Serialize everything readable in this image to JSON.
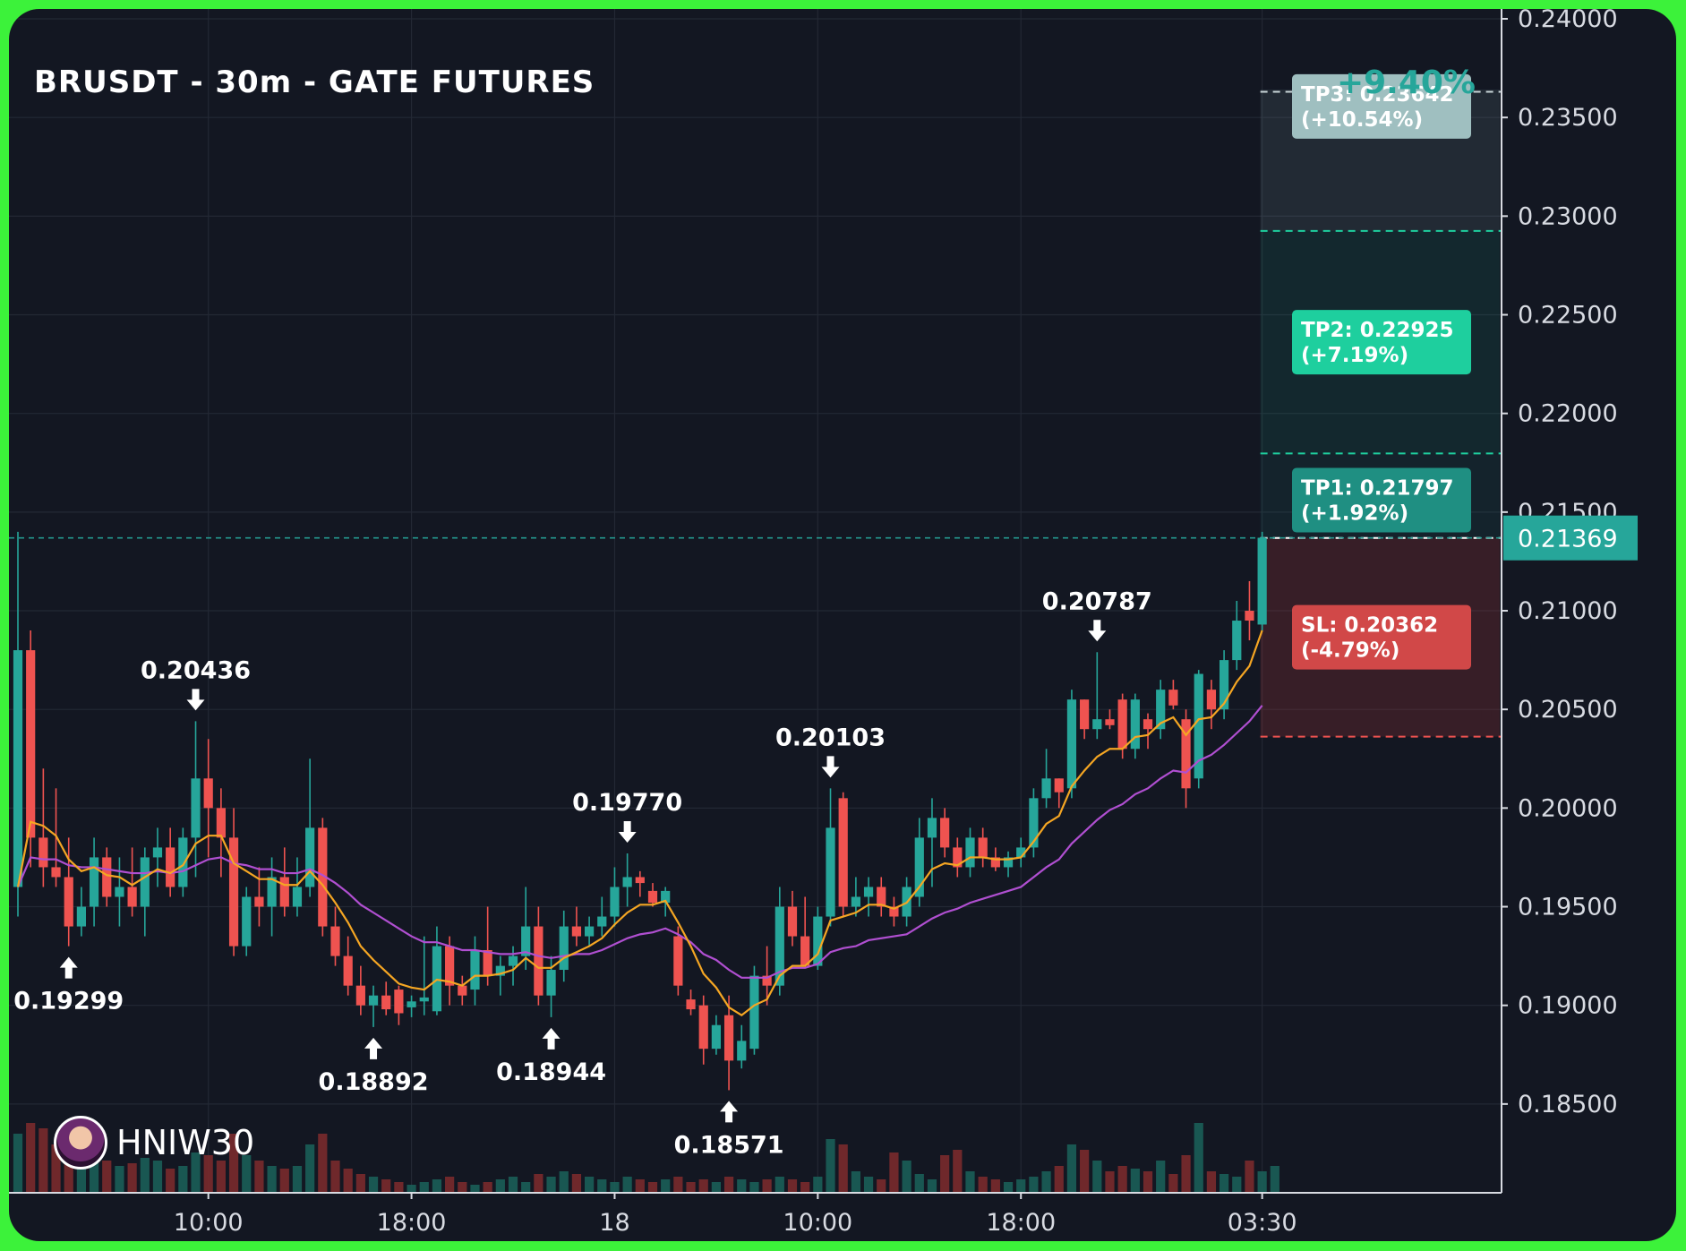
{
  "header": {
    "title": "BRUSDT - 30m - GATE FUTURES",
    "total_gain": "+9.40%"
  },
  "watermark": {
    "label": "HNIW30",
    "icon": "avatar-icon"
  },
  "colors": {
    "background": "#131722",
    "frame": "#3cf23a",
    "bull": "#26a69a",
    "bear": "#ef5350",
    "ema_fast": "#f5a623",
    "ema_slow": "#b04fd1",
    "tp1": "#1f8f82",
    "tp2": "#1ecf9e",
    "tp3": "#9fbfc0",
    "sl": "#d14848",
    "current_price": "#26a69a"
  },
  "chart_data": {
    "type": "candlestick",
    "title": "BRUSDT - 30m - GATE FUTURES",
    "xlabel": "",
    "ylabel": "",
    "ylim": [
      0.1805,
      0.2405
    ],
    "grid": true,
    "y_ticks": [
      "0.18500",
      "0.19000",
      "0.19500",
      "0.20000",
      "0.20500",
      "0.21000",
      "0.21500",
      "0.22000",
      "0.22500",
      "0.23000",
      "0.23500",
      "0.24000"
    ],
    "x_ticks": [
      {
        "label": "10:00",
        "bar": 15
      },
      {
        "label": "18:00",
        "bar": 31
      },
      {
        "label": "18",
        "bar": 47
      },
      {
        "label": "10:00",
        "bar": 63
      },
      {
        "label": "18:00",
        "bar": 79
      },
      {
        "label": "03:30",
        "bar": 98
      }
    ],
    "candles": [
      {
        "o": 0.196,
        "h": 0.214,
        "l": 0.1945,
        "c": 0.208
      },
      {
        "o": 0.208,
        "h": 0.209,
        "l": 0.197,
        "c": 0.1985
      },
      {
        "o": 0.1985,
        "h": 0.202,
        "l": 0.196,
        "c": 0.197
      },
      {
        "o": 0.197,
        "h": 0.201,
        "l": 0.196,
        "c": 0.1965
      },
      {
        "o": 0.1965,
        "h": 0.1985,
        "l": 0.193,
        "c": 0.194
      },
      {
        "o": 0.194,
        "h": 0.196,
        "l": 0.1935,
        "c": 0.195
      },
      {
        "o": 0.195,
        "h": 0.1985,
        "l": 0.194,
        "c": 0.1975
      },
      {
        "o": 0.1975,
        "h": 0.198,
        "l": 0.195,
        "c": 0.1955
      },
      {
        "o": 0.1955,
        "h": 0.1975,
        "l": 0.194,
        "c": 0.196
      },
      {
        "o": 0.196,
        "h": 0.198,
        "l": 0.1945,
        "c": 0.195
      },
      {
        "o": 0.195,
        "h": 0.198,
        "l": 0.1935,
        "c": 0.1975
      },
      {
        "o": 0.1975,
        "h": 0.199,
        "l": 0.196,
        "c": 0.198
      },
      {
        "o": 0.198,
        "h": 0.199,
        "l": 0.1955,
        "c": 0.196
      },
      {
        "o": 0.196,
        "h": 0.199,
        "l": 0.1955,
        "c": 0.1985
      },
      {
        "o": 0.1985,
        "h": 0.2044,
        "l": 0.1965,
        "c": 0.2015
      },
      {
        "o": 0.2015,
        "h": 0.2035,
        "l": 0.1975,
        "c": 0.2
      },
      {
        "o": 0.2,
        "h": 0.201,
        "l": 0.1965,
        "c": 0.1985
      },
      {
        "o": 0.1985,
        "h": 0.2,
        "l": 0.1925,
        "c": 0.193
      },
      {
        "o": 0.193,
        "h": 0.196,
        "l": 0.1925,
        "c": 0.1955
      },
      {
        "o": 0.1955,
        "h": 0.197,
        "l": 0.194,
        "c": 0.195
      },
      {
        "o": 0.195,
        "h": 0.1975,
        "l": 0.1935,
        "c": 0.1965
      },
      {
        "o": 0.1965,
        "h": 0.198,
        "l": 0.1945,
        "c": 0.195
      },
      {
        "o": 0.195,
        "h": 0.1975,
        "l": 0.1945,
        "c": 0.196
      },
      {
        "o": 0.196,
        "h": 0.2025,
        "l": 0.1955,
        "c": 0.199
      },
      {
        "o": 0.199,
        "h": 0.1995,
        "l": 0.1935,
        "c": 0.194
      },
      {
        "o": 0.194,
        "h": 0.195,
        "l": 0.192,
        "c": 0.1925
      },
      {
        "o": 0.1925,
        "h": 0.1935,
        "l": 0.1905,
        "c": 0.191
      },
      {
        "o": 0.191,
        "h": 0.192,
        "l": 0.1895,
        "c": 0.19
      },
      {
        "o": 0.19,
        "h": 0.191,
        "l": 0.1889,
        "c": 0.1905
      },
      {
        "o": 0.1905,
        "h": 0.1912,
        "l": 0.1895,
        "c": 0.1898
      },
      {
        "o": 0.1908,
        "h": 0.191,
        "l": 0.189,
        "c": 0.1896
      },
      {
        "o": 0.1899,
        "h": 0.1905,
        "l": 0.1894,
        "c": 0.1902
      },
      {
        "o": 0.1902,
        "h": 0.1935,
        "l": 0.1895,
        "c": 0.1904
      },
      {
        "o": 0.1897,
        "h": 0.194,
        "l": 0.1895,
        "c": 0.193
      },
      {
        "o": 0.193,
        "h": 0.1935,
        "l": 0.19,
        "c": 0.191
      },
      {
        "o": 0.191,
        "h": 0.1915,
        "l": 0.19,
        "c": 0.1905
      },
      {
        "o": 0.1908,
        "h": 0.1935,
        "l": 0.19,
        "c": 0.1928
      },
      {
        "o": 0.1928,
        "h": 0.195,
        "l": 0.191,
        "c": 0.1915
      },
      {
        "o": 0.1915,
        "h": 0.1925,
        "l": 0.1905,
        "c": 0.192
      },
      {
        "o": 0.192,
        "h": 0.193,
        "l": 0.191,
        "c": 0.1925
      },
      {
        "o": 0.1925,
        "h": 0.196,
        "l": 0.1918,
        "c": 0.194
      },
      {
        "o": 0.194,
        "h": 0.195,
        "l": 0.19,
        "c": 0.1905
      },
      {
        "o": 0.1905,
        "h": 0.1925,
        "l": 0.1894,
        "c": 0.1918
      },
      {
        "o": 0.1918,
        "h": 0.1948,
        "l": 0.1912,
        "c": 0.194
      },
      {
        "o": 0.194,
        "h": 0.195,
        "l": 0.193,
        "c": 0.1935
      },
      {
        "o": 0.1935,
        "h": 0.1945,
        "l": 0.193,
        "c": 0.194
      },
      {
        "o": 0.194,
        "h": 0.1955,
        "l": 0.1935,
        "c": 0.1945
      },
      {
        "o": 0.1945,
        "h": 0.197,
        "l": 0.194,
        "c": 0.196
      },
      {
        "o": 0.196,
        "h": 0.1977,
        "l": 0.195,
        "c": 0.1965
      },
      {
        "o": 0.1965,
        "h": 0.1968,
        "l": 0.1955,
        "c": 0.1962
      },
      {
        "o": 0.1958,
        "h": 0.1962,
        "l": 0.195,
        "c": 0.1952
      },
      {
        "o": 0.1952,
        "h": 0.196,
        "l": 0.1945,
        "c": 0.1958
      },
      {
        "o": 0.1935,
        "h": 0.194,
        "l": 0.1905,
        "c": 0.191
      },
      {
        "o": 0.1903,
        "h": 0.1908,
        "l": 0.1895,
        "c": 0.1898
      },
      {
        "o": 0.19,
        "h": 0.1905,
        "l": 0.187,
        "c": 0.1878
      },
      {
        "o": 0.1878,
        "h": 0.1895,
        "l": 0.1875,
        "c": 0.189
      },
      {
        "o": 0.1895,
        "h": 0.1905,
        "l": 0.1857,
        "c": 0.1872
      },
      {
        "o": 0.1872,
        "h": 0.189,
        "l": 0.1868,
        "c": 0.1882
      },
      {
        "o": 0.1878,
        "h": 0.192,
        "l": 0.1875,
        "c": 0.1915
      },
      {
        "o": 0.1915,
        "h": 0.193,
        "l": 0.19,
        "c": 0.191
      },
      {
        "o": 0.191,
        "h": 0.196,
        "l": 0.1905,
        "c": 0.195
      },
      {
        "o": 0.195,
        "h": 0.1958,
        "l": 0.193,
        "c": 0.1935
      },
      {
        "o": 0.1935,
        "h": 0.1955,
        "l": 0.192,
        "c": 0.192
      },
      {
        "o": 0.192,
        "h": 0.195,
        "l": 0.1918,
        "c": 0.1945
      },
      {
        "o": 0.1945,
        "h": 0.201,
        "l": 0.194,
        "c": 0.199
      },
      {
        "o": 0.2005,
        "h": 0.2008,
        "l": 0.1945,
        "c": 0.195
      },
      {
        "o": 0.195,
        "h": 0.1965,
        "l": 0.1945,
        "c": 0.1955
      },
      {
        "o": 0.1955,
        "h": 0.1965,
        "l": 0.1945,
        "c": 0.196
      },
      {
        "o": 0.196,
        "h": 0.1965,
        "l": 0.1945,
        "c": 0.195
      },
      {
        "o": 0.195,
        "h": 0.1955,
        "l": 0.194,
        "c": 0.1945
      },
      {
        "o": 0.1945,
        "h": 0.1965,
        "l": 0.194,
        "c": 0.196
      },
      {
        "o": 0.1955,
        "h": 0.1995,
        "l": 0.195,
        "c": 0.1985
      },
      {
        "o": 0.1985,
        "h": 0.2005,
        "l": 0.196,
        "c": 0.1995
      },
      {
        "o": 0.1995,
        "h": 0.2,
        "l": 0.1975,
        "c": 0.198
      },
      {
        "o": 0.198,
        "h": 0.1985,
        "l": 0.1965,
        "c": 0.197
      },
      {
        "o": 0.197,
        "h": 0.199,
        "l": 0.1965,
        "c": 0.1985
      },
      {
        "o": 0.1985,
        "h": 0.199,
        "l": 0.197,
        "c": 0.1975
      },
      {
        "o": 0.1975,
        "h": 0.198,
        "l": 0.1968,
        "c": 0.197
      },
      {
        "o": 0.197,
        "h": 0.1978,
        "l": 0.1965,
        "c": 0.1975
      },
      {
        "o": 0.1975,
        "h": 0.1985,
        "l": 0.197,
        "c": 0.198
      },
      {
        "o": 0.198,
        "h": 0.201,
        "l": 0.1975,
        "c": 0.2005
      },
      {
        "o": 0.2005,
        "h": 0.203,
        "l": 0.2,
        "c": 0.2015
      },
      {
        "o": 0.2015,
        "h": 0.2015,
        "l": 0.2,
        "c": 0.2008
      },
      {
        "o": 0.201,
        "h": 0.206,
        "l": 0.2005,
        "c": 0.2055
      },
      {
        "o": 0.2055,
        "h": 0.2055,
        "l": 0.2035,
        "c": 0.204
      },
      {
        "o": 0.204,
        "h": 0.2079,
        "l": 0.2035,
        "c": 0.2045
      },
      {
        "o": 0.2045,
        "h": 0.205,
        "l": 0.204,
        "c": 0.2042
      },
      {
        "o": 0.2055,
        "h": 0.2058,
        "l": 0.2025,
        "c": 0.203
      },
      {
        "o": 0.203,
        "h": 0.2058,
        "l": 0.2025,
        "c": 0.2055
      },
      {
        "o": 0.2045,
        "h": 0.2048,
        "l": 0.203,
        "c": 0.204
      },
      {
        "o": 0.204,
        "h": 0.2065,
        "l": 0.2035,
        "c": 0.206
      },
      {
        "o": 0.206,
        "h": 0.2065,
        "l": 0.205,
        "c": 0.2052
      },
      {
        "o": 0.2045,
        "h": 0.205,
        "l": 0.2,
        "c": 0.201
      },
      {
        "o": 0.2015,
        "h": 0.207,
        "l": 0.201,
        "c": 0.2068
      },
      {
        "o": 0.206,
        "h": 0.2065,
        "l": 0.204,
        "c": 0.205
      },
      {
        "o": 0.205,
        "h": 0.208,
        "l": 0.2045,
        "c": 0.2075
      },
      {
        "o": 0.2075,
        "h": 0.2105,
        "l": 0.207,
        "c": 0.2095
      },
      {
        "o": 0.21,
        "h": 0.2115,
        "l": 0.2085,
        "c": 0.2095
      },
      {
        "o": 0.2093,
        "h": 0.214,
        "l": 0.209,
        "c": 0.2137
      }
    ],
    "volumes": [
      22,
      26,
      24,
      18,
      12,
      10,
      14,
      12,
      10,
      11,
      13,
      12,
      9,
      10,
      15,
      14,
      12,
      22,
      14,
      12,
      10,
      9,
      10,
      18,
      22,
      12,
      9,
      7,
      6,
      5,
      4,
      3,
      4,
      5,
      6,
      4,
      3,
      4,
      5,
      6,
      4,
      7,
      6,
      8,
      7,
      6,
      5,
      4,
      6,
      5,
      4,
      5,
      6,
      4,
      5,
      4,
      6,
      5,
      4,
      5,
      6,
      5,
      4,
      6,
      20,
      18,
      8,
      6,
      5,
      15,
      12,
      7,
      5,
      14,
      16,
      8,
      6,
      5,
      4,
      5,
      6,
      8,
      10,
      18,
      16,
      12,
      8,
      10,
      9,
      8,
      12,
      7,
      14,
      26,
      8,
      7,
      6,
      12,
      8,
      10
    ],
    "ema_fast": [
      0.196,
      0.1993,
      0.1991,
      0.1986,
      0.1974,
      0.1968,
      0.197,
      0.1966,
      0.1965,
      0.1961,
      0.1965,
      0.1969,
      0.1967,
      0.1971,
      0.1982,
      0.1986,
      0.1986,
      0.1972,
      0.1968,
      0.1964,
      0.1964,
      0.1961,
      0.1961,
      0.1968,
      0.1961,
      0.1952,
      0.1942,
      0.193,
      0.1923,
      0.1917,
      0.1911,
      0.1909,
      0.1908,
      0.1913,
      0.1912,
      0.191,
      0.1915,
      0.1915,
      0.1916,
      0.1918,
      0.1924,
      0.1919,
      0.1919,
      0.1924,
      0.1927,
      0.193,
      0.1934,
      0.1941,
      0.1947,
      0.1951,
      0.1951,
      0.1953,
      0.1942,
      0.193,
      0.1916,
      0.1909,
      0.1899,
      0.1895,
      0.19,
      0.1903,
      0.1915,
      0.192,
      0.192,
      0.1926,
      0.1943,
      0.1945,
      0.1947,
      0.1951,
      0.1951,
      0.1949,
      0.1952,
      0.196,
      0.1969,
      0.1972,
      0.1971,
      0.1975,
      0.1975,
      0.1974,
      0.1974,
      0.1975,
      0.1983,
      0.1992,
      0.1996,
      0.2011,
      0.2019,
      0.2026,
      0.203,
      0.203,
      0.2036,
      0.2037,
      0.2043,
      0.2046,
      0.2037,
      0.2045,
      0.2046,
      0.2053,
      0.2064,
      0.2072,
      0.209
    ],
    "ema_slow": [
      0.196,
      0.1975,
      0.1974,
      0.1974,
      0.1971,
      0.197,
      0.197,
      0.1969,
      0.1968,
      0.1967,
      0.1967,
      0.1968,
      0.1967,
      0.1968,
      0.1971,
      0.1974,
      0.1975,
      0.1972,
      0.1971,
      0.1969,
      0.1969,
      0.1967,
      0.1967,
      0.1969,
      0.1966,
      0.1962,
      0.1957,
      0.1951,
      0.1947,
      0.1943,
      0.1939,
      0.1935,
      0.1932,
      0.1932,
      0.193,
      0.1928,
      0.1928,
      0.1927,
      0.1926,
      0.1926,
      0.1927,
      0.1925,
      0.1924,
      0.1925,
      0.1926,
      0.1926,
      0.1928,
      0.1931,
      0.1934,
      0.1936,
      0.1937,
      0.1939,
      0.1936,
      0.1932,
      0.1926,
      0.1923,
      0.1918,
      0.1914,
      0.1914,
      0.1914,
      0.1917,
      0.1919,
      0.1919,
      0.1921,
      0.1927,
      0.1929,
      0.193,
      0.1933,
      0.1934,
      0.1935,
      0.1936,
      0.194,
      0.1944,
      0.1947,
      0.1949,
      0.1952,
      0.1954,
      0.1956,
      0.1958,
      0.196,
      0.1965,
      0.197,
      0.1974,
      0.1982,
      0.1988,
      0.1994,
      0.1999,
      0.2002,
      0.2007,
      0.201,
      0.2015,
      0.2019,
      0.2018,
      0.2024,
      0.2027,
      0.2032,
      0.2038,
      0.2044,
      0.2052
    ],
    "annotations": [
      {
        "label": "0.19299",
        "bar": 4,
        "price": 0.193,
        "direction": "up"
      },
      {
        "label": "0.20436",
        "bar": 14,
        "price": 0.2044,
        "direction": "down"
      },
      {
        "label": "0.18892",
        "bar": 28,
        "price": 0.1889,
        "direction": "up"
      },
      {
        "label": "0.18944",
        "bar": 42,
        "price": 0.1894,
        "direction": "up"
      },
      {
        "label": "0.19770",
        "bar": 48,
        "price": 0.1977,
        "direction": "down"
      },
      {
        "label": "0.18571",
        "bar": 56,
        "price": 0.1857,
        "direction": "up"
      },
      {
        "label": "0.20103",
        "bar": 64,
        "price": 0.201,
        "direction": "down"
      },
      {
        "label": "0.20787",
        "bar": 85,
        "price": 0.2079,
        "direction": "down"
      }
    ],
    "levels": {
      "entry": 0.21369,
      "entry_label": "0.21369",
      "sl": {
        "price": 0.20362,
        "label": "SL: 0.20362",
        "pct": "(-4.79%)"
      },
      "tp1": {
        "price": 0.21797,
        "label": "TP1: 0.21797",
        "pct": "(+1.92%)"
      },
      "tp2": {
        "price": 0.22925,
        "label": "TP2: 0.22925",
        "pct": "(+7.19%)"
      },
      "tp3": {
        "price": 0.23642,
        "label": "TP3: 0.23642",
        "pct": "(+10.54%)"
      }
    }
  }
}
